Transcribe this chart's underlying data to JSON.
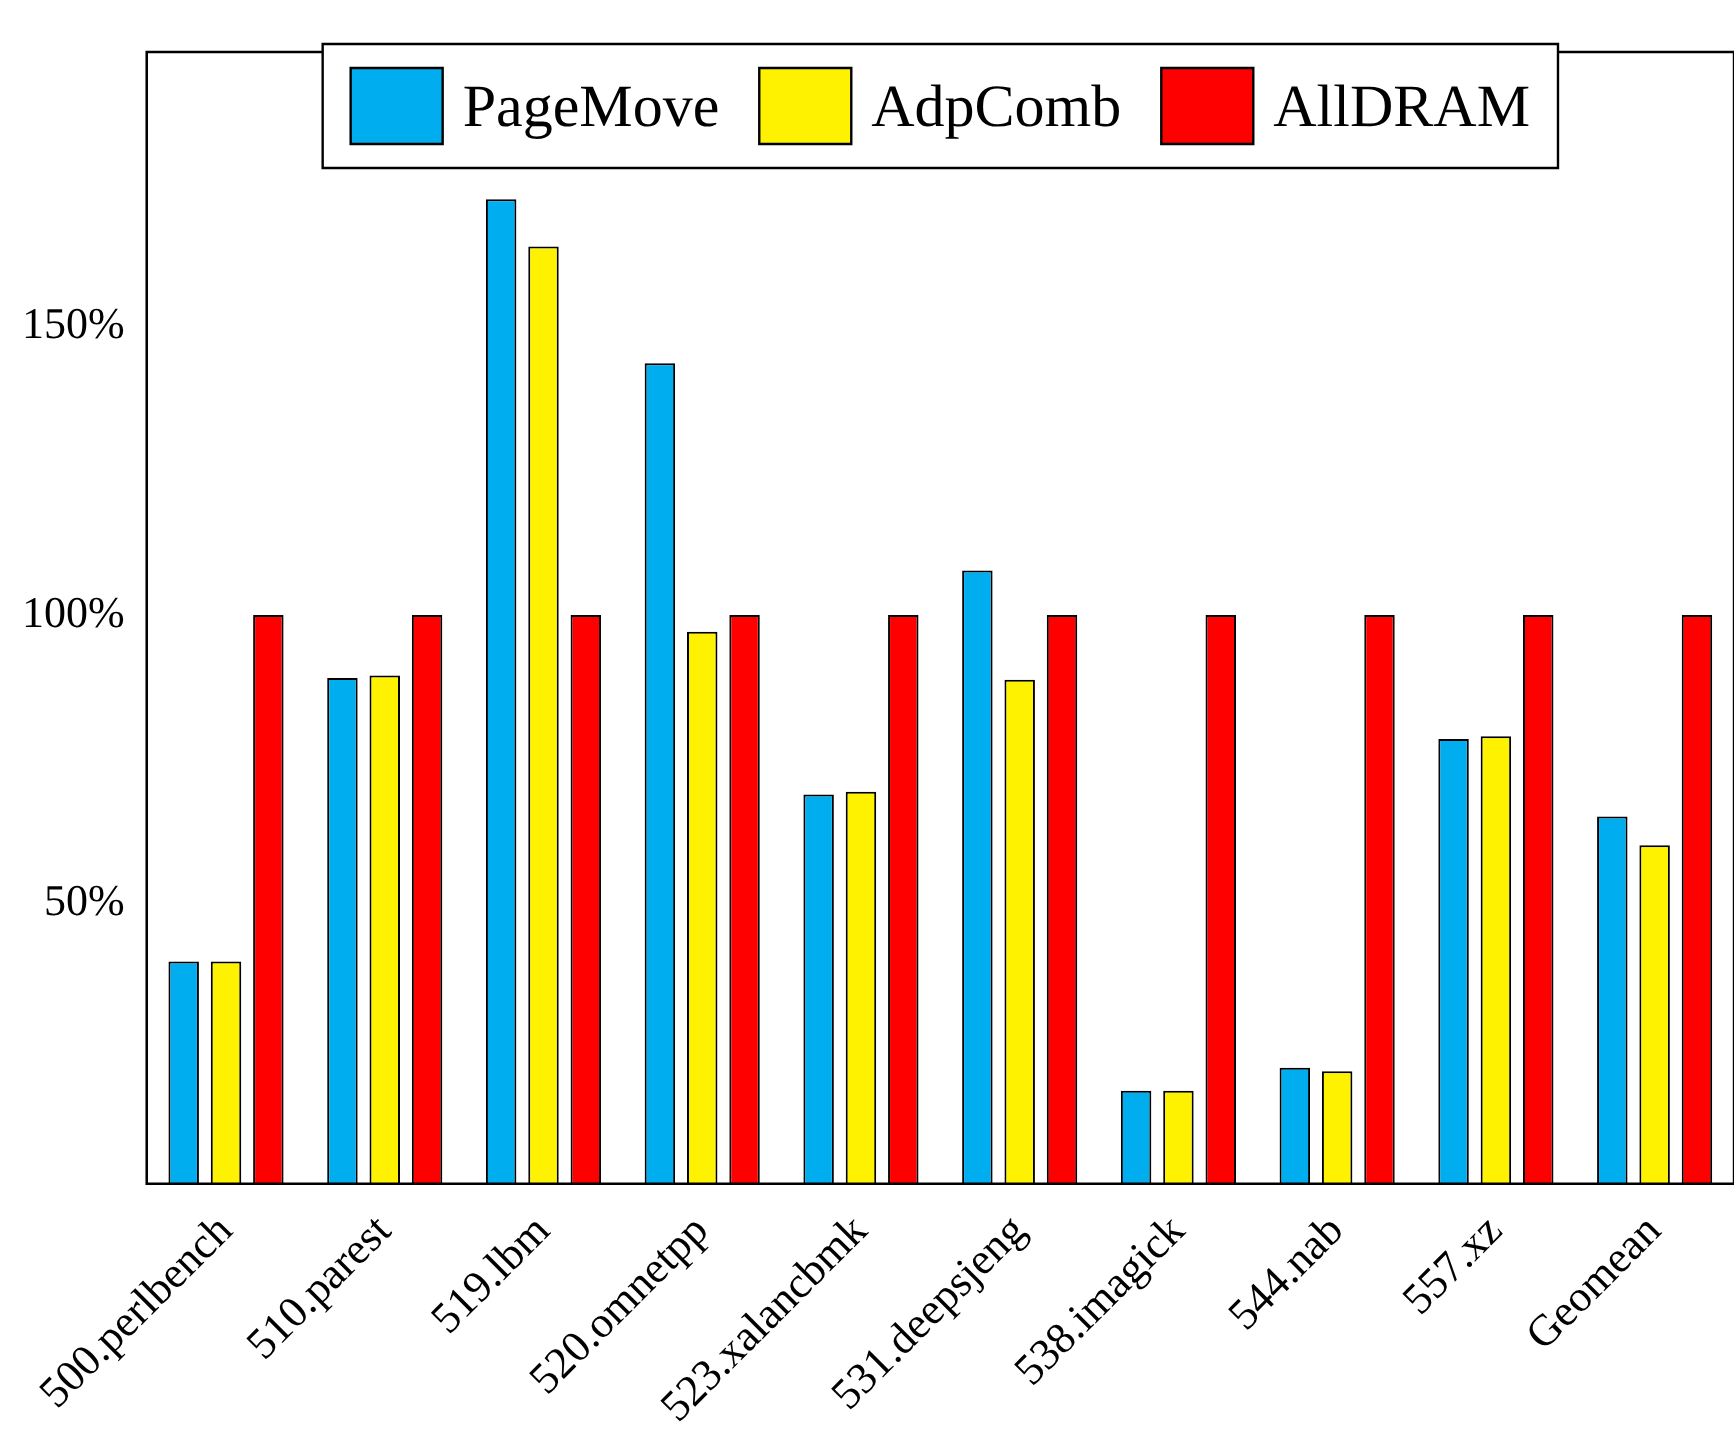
{
  "chart_data": {
    "type": "bar",
    "categories": [
      "500.perlbench",
      "510.parest",
      "519.lbm",
      "520.omnetpp",
      "523.xalancbmk",
      "531.deepsjeng",
      "538.imagick",
      "544.nab",
      "557.xz",
      "Geomean"
    ],
    "series": [
      {
        "name": "PageMove",
        "color": "#00aeef",
        "values": [
          40,
          89.1,
          172,
          143.6,
          68.9,
          107.7,
          17.6,
          21.6,
          78.5,
          65.1
        ]
      },
      {
        "name": "AdpComb",
        "color": "#fff200",
        "values": [
          40,
          89.5,
          163.8,
          97.1,
          69.4,
          88.8,
          17.6,
          21.0,
          79.0,
          60.1
        ]
      },
      {
        "name": "AllDRAM",
        "color": "#ff0000",
        "values": [
          100,
          100,
          100,
          100,
          100,
          100,
          100,
          100,
          100,
          100
        ]
      }
    ],
    "ylim": [
      1.5,
      197.5
    ],
    "yticks": [
      {
        "value": 50,
        "label": "50%"
      },
      {
        "value": 100,
        "label": "100%"
      },
      {
        "value": 150,
        "label": "150%"
      }
    ],
    "grid": false,
    "legend": "top"
  }
}
